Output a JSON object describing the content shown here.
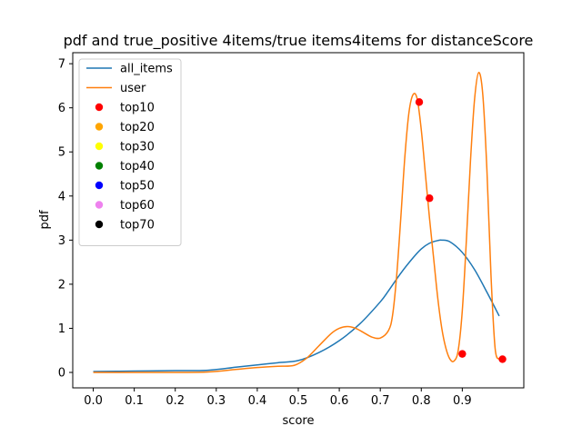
{
  "chart_data": {
    "type": "line",
    "title": "pdf and true_positive 4items/true items4items for distanceScore",
    "xlabel": "score",
    "ylabel": "pdf",
    "xlim": [
      -0.05,
      1.05
    ],
    "ylim": [
      -0.35,
      7.25
    ],
    "xticks": [
      0.0,
      0.1,
      0.2,
      0.3,
      0.4,
      0.5,
      0.6,
      0.7,
      0.8,
      0.9
    ],
    "xtick_labels": [
      "0.0",
      "0.1",
      "0.2",
      "0.3",
      "0.4",
      "0.5",
      "0.6",
      "0.7",
      "0.8",
      "0.9"
    ],
    "yticks": [
      0,
      1,
      2,
      3,
      4,
      5,
      6,
      7
    ],
    "ytick_labels": [
      "0",
      "1",
      "2",
      "3",
      "4",
      "5",
      "6",
      "7"
    ],
    "grid": false,
    "legend_position": "top-left",
    "series": [
      {
        "name": "all_items",
        "kind": "line",
        "color": "#1f77b4",
        "x": [
          0.0,
          0.1,
          0.2,
          0.28,
          0.35,
          0.4,
          0.45,
          0.5,
          0.55,
          0.6,
          0.65,
          0.7,
          0.72,
          0.75,
          0.78,
          0.8,
          0.82,
          0.84,
          0.85,
          0.87,
          0.9,
          0.93,
          0.96,
          0.99
        ],
        "y": [
          0.02,
          0.03,
          0.04,
          0.05,
          0.12,
          0.17,
          0.22,
          0.27,
          0.45,
          0.72,
          1.1,
          1.6,
          1.85,
          2.25,
          2.6,
          2.8,
          2.93,
          2.99,
          3.0,
          2.96,
          2.72,
          2.33,
          1.82,
          1.28
        ]
      },
      {
        "name": "user",
        "kind": "line",
        "color": "#ff7f0e",
        "x": [
          0.0,
          0.1,
          0.2,
          0.28,
          0.35,
          0.4,
          0.45,
          0.49,
          0.52,
          0.55,
          0.58,
          0.6,
          0.62,
          0.64,
          0.66,
          0.68,
          0.7,
          0.72,
          0.73,
          0.74,
          0.75,
          0.76,
          0.77,
          0.78,
          0.79,
          0.8,
          0.81,
          0.82,
          0.83,
          0.84,
          0.85,
          0.86,
          0.87,
          0.88,
          0.89,
          0.9,
          0.91,
          0.92,
          0.93,
          0.94,
          0.95,
          0.96,
          0.97,
          0.98,
          0.99
        ],
        "y": [
          0.0,
          0.0,
          0.0,
          0.01,
          0.07,
          0.11,
          0.14,
          0.16,
          0.32,
          0.6,
          0.88,
          1.0,
          1.04,
          1.0,
          0.9,
          0.8,
          0.78,
          0.95,
          1.3,
          2.2,
          3.5,
          4.9,
          5.9,
          6.3,
          6.2,
          5.5,
          4.5,
          3.5,
          2.6,
          1.7,
          1.0,
          0.55,
          0.3,
          0.26,
          0.5,
          1.4,
          3.0,
          4.8,
          6.2,
          6.8,
          6.3,
          4.6,
          2.2,
          0.55,
          0.3
        ]
      },
      {
        "name": "top10",
        "kind": "scatter",
        "color": "#ff0000",
        "x": [
          0.795,
          0.82,
          0.9,
          0.998
        ],
        "y": [
          6.13,
          3.95,
          0.42,
          0.3
        ]
      },
      {
        "name": "top20",
        "kind": "scatter",
        "color": "#ffa500",
        "x": [],
        "y": []
      },
      {
        "name": "top30",
        "kind": "scatter",
        "color": "#ffff00",
        "x": [],
        "y": []
      },
      {
        "name": "top40",
        "kind": "scatter",
        "color": "#008000",
        "x": [],
        "y": []
      },
      {
        "name": "top50",
        "kind": "scatter",
        "color": "#0000ff",
        "x": [],
        "y": []
      },
      {
        "name": "top60",
        "kind": "scatter",
        "color": "#ee82ee",
        "x": [],
        "y": []
      },
      {
        "name": "top70",
        "kind": "scatter",
        "color": "#000000",
        "x": [],
        "y": []
      }
    ]
  }
}
